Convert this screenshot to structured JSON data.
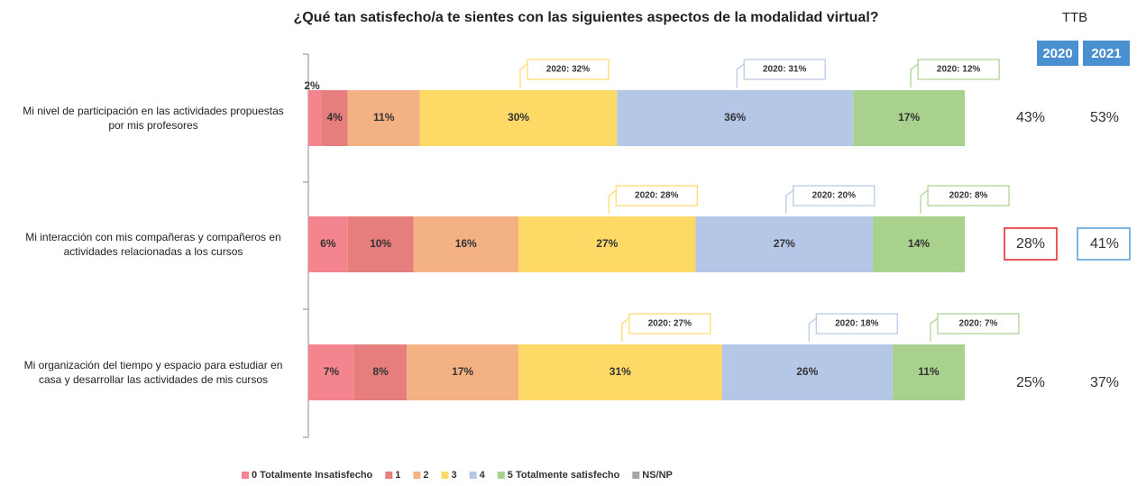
{
  "chart_data": {
    "type": "stacked-bar-horizontal",
    "title": "¿Qué tan satisfecho/a te sientes con las siguientes aspectos de la modalidad virtual?",
    "categories": [
      "Mi nivel de participación en las actividades propuestas por mis profesores",
      "Mi interacción con mis compañeras y compañeros en actividades relacionadas a los cursos",
      "Mi organización del tiempo y espacio para estudiar en casa y desarrollar las actividades de mis cursos"
    ],
    "xlim": [
      0,
      100
    ],
    "series": [
      {
        "name": "0 Totalmente Insatisfecho",
        "color": "#f4858e",
        "values": [
          2,
          6,
          7
        ],
        "value_labels": [
          "2%",
          "6%",
          "7%"
        ]
      },
      {
        "name": "1",
        "color": "#e77e7e",
        "values": [
          4,
          10,
          8
        ],
        "value_labels": [
          "4%",
          "10%",
          "8%"
        ]
      },
      {
        "name": "2",
        "color": "#f4b183",
        "values": [
          11,
          16,
          17
        ],
        "value_labels": [
          "11%",
          "16%",
          "17%"
        ]
      },
      {
        "name": "3",
        "color": "#ffd966",
        "values": [
          30,
          27,
          31
        ],
        "value_labels": [
          "30%",
          "27%",
          "31%"
        ],
        "annotations": [
          "2020: 32%",
          "2020: 28%",
          "2020: 27%"
        ]
      },
      {
        "name": "4",
        "color": "#b4c7e7",
        "values": [
          36,
          27,
          26
        ],
        "value_labels": [
          "36%",
          "27%",
          "26%"
        ],
        "annotations": [
          "2020: 31%",
          "2020: 20%",
          "2020: 18%"
        ]
      },
      {
        "name": "5 Totalmente satisfecho",
        "color": "#a9d18e",
        "values": [
          17,
          14,
          11
        ],
        "value_labels": [
          "17%",
          "14%",
          "11%"
        ],
        "annotations": [
          "2020: 12%",
          "2020: 8%",
          "2020: 7%"
        ]
      },
      {
        "name": "NS/NP",
        "color": "#a6a6a6",
        "values": [
          0,
          0,
          0
        ]
      }
    ],
    "ttb": {
      "title": "TTB",
      "columns": [
        "2020",
        "2021"
      ],
      "rows": [
        [
          "43%",
          "53%"
        ],
        [
          "28%",
          "41%"
        ],
        [
          "25%",
          "37%"
        ]
      ]
    }
  }
}
